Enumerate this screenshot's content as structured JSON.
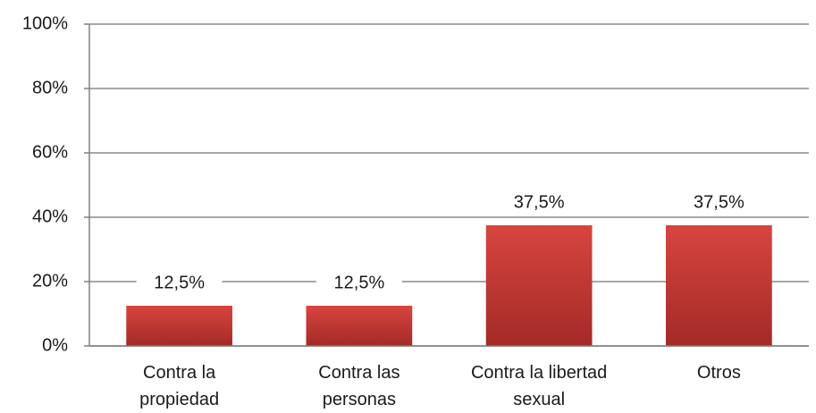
{
  "chart_data": {
    "type": "bar",
    "categories": [
      "Contra la propiedad",
      "Contra las personas",
      "Contra la libertad sexual",
      "Otros"
    ],
    "values": [
      12.5,
      12.5,
      37.5,
      37.5
    ],
    "value_labels": [
      "12,5%",
      "12,5%",
      "37,5%",
      "37,5%"
    ],
    "color": "#c63a36",
    "ylim": [
      0,
      100
    ],
    "yticks": [
      {
        "value": 0,
        "label": "0%"
      },
      {
        "value": 20,
        "label": "20%"
      },
      {
        "value": 40,
        "label": "40%"
      },
      {
        "value": 60,
        "label": "60%"
      },
      {
        "value": 80,
        "label": "80%"
      },
      {
        "value": 100,
        "label": "100%"
      }
    ],
    "grid": true
  }
}
